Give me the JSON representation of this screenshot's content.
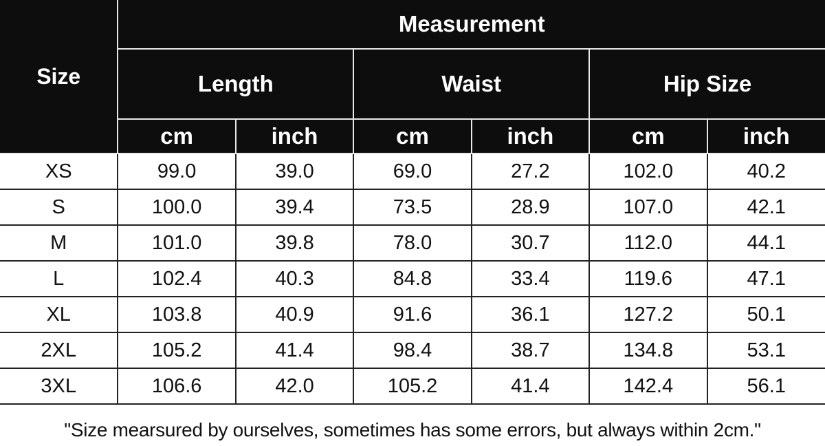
{
  "header": {
    "size": "Size",
    "measurement": "Measurement",
    "groups": [
      "Length",
      "Waist",
      "Hip Size"
    ],
    "units": [
      "cm",
      "inch",
      "cm",
      "inch",
      "cm",
      "inch"
    ]
  },
  "rows": [
    {
      "size": "XS",
      "values": [
        "99.0",
        "39.0",
        "69.0",
        "27.2",
        "102.0",
        "40.2"
      ]
    },
    {
      "size": "S",
      "values": [
        "100.0",
        "39.4",
        "73.5",
        "28.9",
        "107.0",
        "42.1"
      ]
    },
    {
      "size": "M",
      "values": [
        "101.0",
        "39.8",
        "78.0",
        "30.7",
        "112.0",
        "44.1"
      ]
    },
    {
      "size": "L",
      "values": [
        "102.4",
        "40.3",
        "84.8",
        "33.4",
        "119.6",
        "47.1"
      ]
    },
    {
      "size": "XL",
      "values": [
        "103.8",
        "40.9",
        "91.6",
        "36.1",
        "127.2",
        "50.1"
      ]
    },
    {
      "size": "2XL",
      "values": [
        "105.2",
        "41.4",
        "98.4",
        "38.7",
        "134.8",
        "53.1"
      ]
    },
    {
      "size": "3XL",
      "values": [
        "106.6",
        "42.0",
        "105.2",
        "41.4",
        "142.4",
        "56.1"
      ]
    }
  ],
  "note": "\"Size mearsured by ourselves, sometimes has some errors, but always within 2cm.\"",
  "colors": {
    "header_bg": "#0d0d0d",
    "header_text": "#ffffff",
    "body_text": "#111111"
  }
}
